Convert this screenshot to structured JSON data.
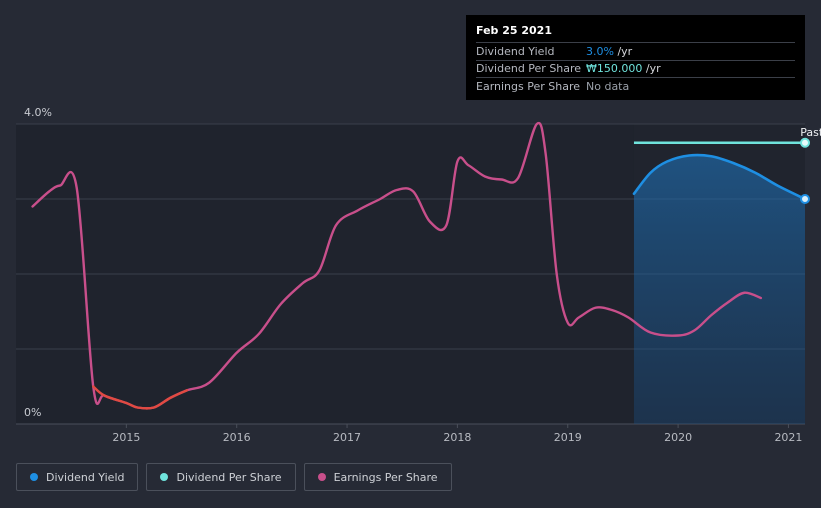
{
  "colors": {
    "background": "#262a35",
    "plot": "#1f232d",
    "dividend_yield": "#1e8fe3",
    "dividend_per_share": "#6fe3dc",
    "earnings_per_share": "#c84f8b",
    "eps_low": "#e14a42"
  },
  "tooltip": {
    "date": "Feb 25 2021",
    "rows": [
      {
        "label": "Dividend Yield",
        "value": "3.0%",
        "suffix": " /yr"
      },
      {
        "label": "Dividend Per Share",
        "value": "₩150.000",
        "suffix": " /yr"
      },
      {
        "label": "Earnings Per Share",
        "value": "No data",
        "suffix": ""
      }
    ]
  },
  "legend": {
    "items": [
      {
        "label": "Dividend Yield",
        "color": "#1e8fe3"
      },
      {
        "label": "Dividend Per Share",
        "color": "#6fe3dc"
      },
      {
        "label": "Earnings Per Share",
        "color": "#c84f8b"
      }
    ]
  },
  "chart_data": {
    "type": "line",
    "title": "",
    "xlabel": "",
    "ylabel": "",
    "xlim": [
      2014.0,
      2021.15
    ],
    "ylim": [
      0,
      4.0
    ],
    "y_ticks": [
      {
        "value": 4.0,
        "label": "4.0%"
      },
      {
        "value": 0,
        "label": "0%"
      }
    ],
    "x_ticks": [
      {
        "value": 2015,
        "label": "2015"
      },
      {
        "value": 2016,
        "label": "2016"
      },
      {
        "value": 2017,
        "label": "2017"
      },
      {
        "value": 2018,
        "label": "2018"
      },
      {
        "value": 2019,
        "label": "2019"
      },
      {
        "value": 2020,
        "label": "2020"
      },
      {
        "value": 2021,
        "label": "2021"
      }
    ],
    "annotations": [
      {
        "text": "Past",
        "x": 2021.07,
        "y": 3.88
      }
    ],
    "highlight_region": [
      2019.6,
      2021.15
    ],
    "series": [
      {
        "name": "Dividend Yield",
        "unit": "%",
        "x": [
          2019.6,
          2019.75,
          2019.9,
          2020.1,
          2020.3,
          2020.5,
          2020.7,
          2020.9,
          2021.15
        ],
        "y": [
          3.07,
          3.35,
          3.5,
          3.58,
          3.57,
          3.48,
          3.35,
          3.18,
          3.0
        ]
      },
      {
        "name": "Dividend Per Share",
        "unit": "",
        "x": [
          2019.6,
          2021.15
        ],
        "y": [
          3.75,
          3.75
        ]
      },
      {
        "name": "Earnings Per Share",
        "unit": "",
        "x": [
          2014.15,
          2014.3,
          2014.4,
          2014.55,
          2014.7,
          2014.8,
          2015.0,
          2015.1,
          2015.25,
          2015.4,
          2015.55,
          2015.75,
          2016.0,
          2016.2,
          2016.4,
          2016.6,
          2016.75,
          2016.9,
          2017.1,
          2017.3,
          2017.45,
          2017.6,
          2017.75,
          2017.9,
          2018.0,
          2018.1,
          2018.25,
          2018.4,
          2018.55,
          2018.72,
          2018.8,
          2018.9,
          2019.0,
          2019.1,
          2019.25,
          2019.4,
          2019.55,
          2019.75,
          2020.0,
          2020.15,
          2020.3,
          2020.45,
          2020.6,
          2020.75
        ],
        "y": [
          2.9,
          3.1,
          3.18,
          3.15,
          0.5,
          0.38,
          0.28,
          0.22,
          0.22,
          0.35,
          0.45,
          0.55,
          0.95,
          1.2,
          1.6,
          1.88,
          2.05,
          2.65,
          2.85,
          3.0,
          3.12,
          3.1,
          2.7,
          2.65,
          3.5,
          3.45,
          3.3,
          3.26,
          3.28,
          4.0,
          3.6,
          2.0,
          1.35,
          1.42,
          1.55,
          1.52,
          1.42,
          1.22,
          1.18,
          1.25,
          1.45,
          1.62,
          1.75,
          1.68
        ]
      }
    ]
  }
}
